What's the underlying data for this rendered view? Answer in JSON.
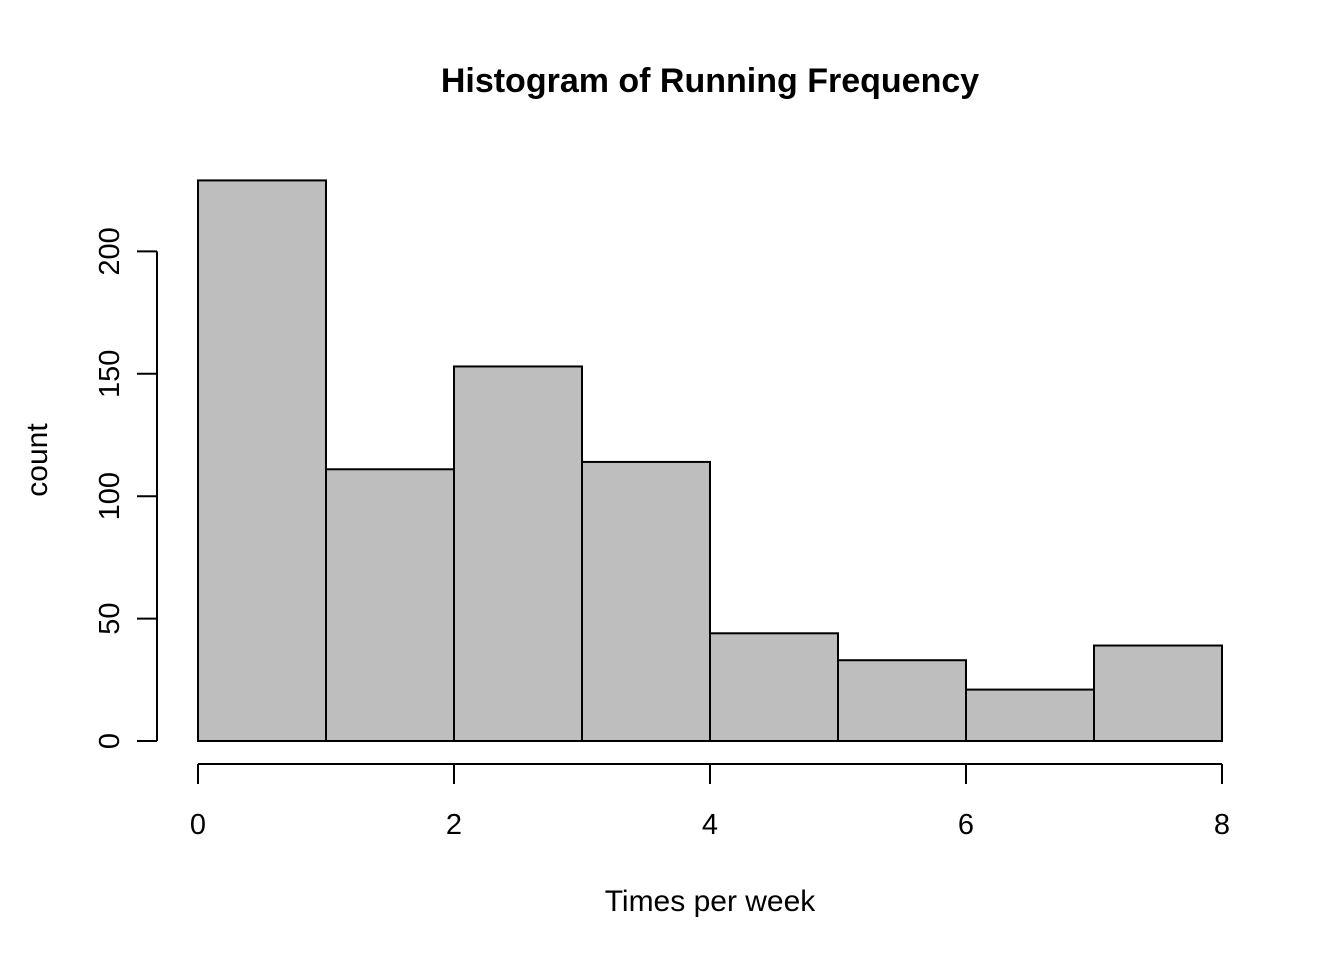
{
  "chart_data": {
    "type": "bar",
    "title": "Histogram of Running Frequency",
    "xlabel": "Times per week",
    "ylabel": "count",
    "bins": [
      {
        "start": 0,
        "end": 1,
        "count": 229
      },
      {
        "start": 1,
        "end": 2,
        "count": 111
      },
      {
        "start": 2,
        "end": 3,
        "count": 153
      },
      {
        "start": 3,
        "end": 4,
        "count": 114
      },
      {
        "start": 4,
        "end": 5,
        "count": 44
      },
      {
        "start": 5,
        "end": 6,
        "count": 33
      },
      {
        "start": 6,
        "end": 7,
        "count": 21
      },
      {
        "start": 7,
        "end": 8,
        "count": 39
      }
    ],
    "xlim": [
      0,
      8
    ],
    "ylim": [
      0,
      229
    ],
    "x_ticks": [
      0,
      2,
      4,
      6,
      8
    ],
    "y_ticks": [
      0,
      50,
      100,
      150,
      200
    ],
    "bar_color": "#bebebe",
    "grid": false,
    "legend": "none"
  }
}
